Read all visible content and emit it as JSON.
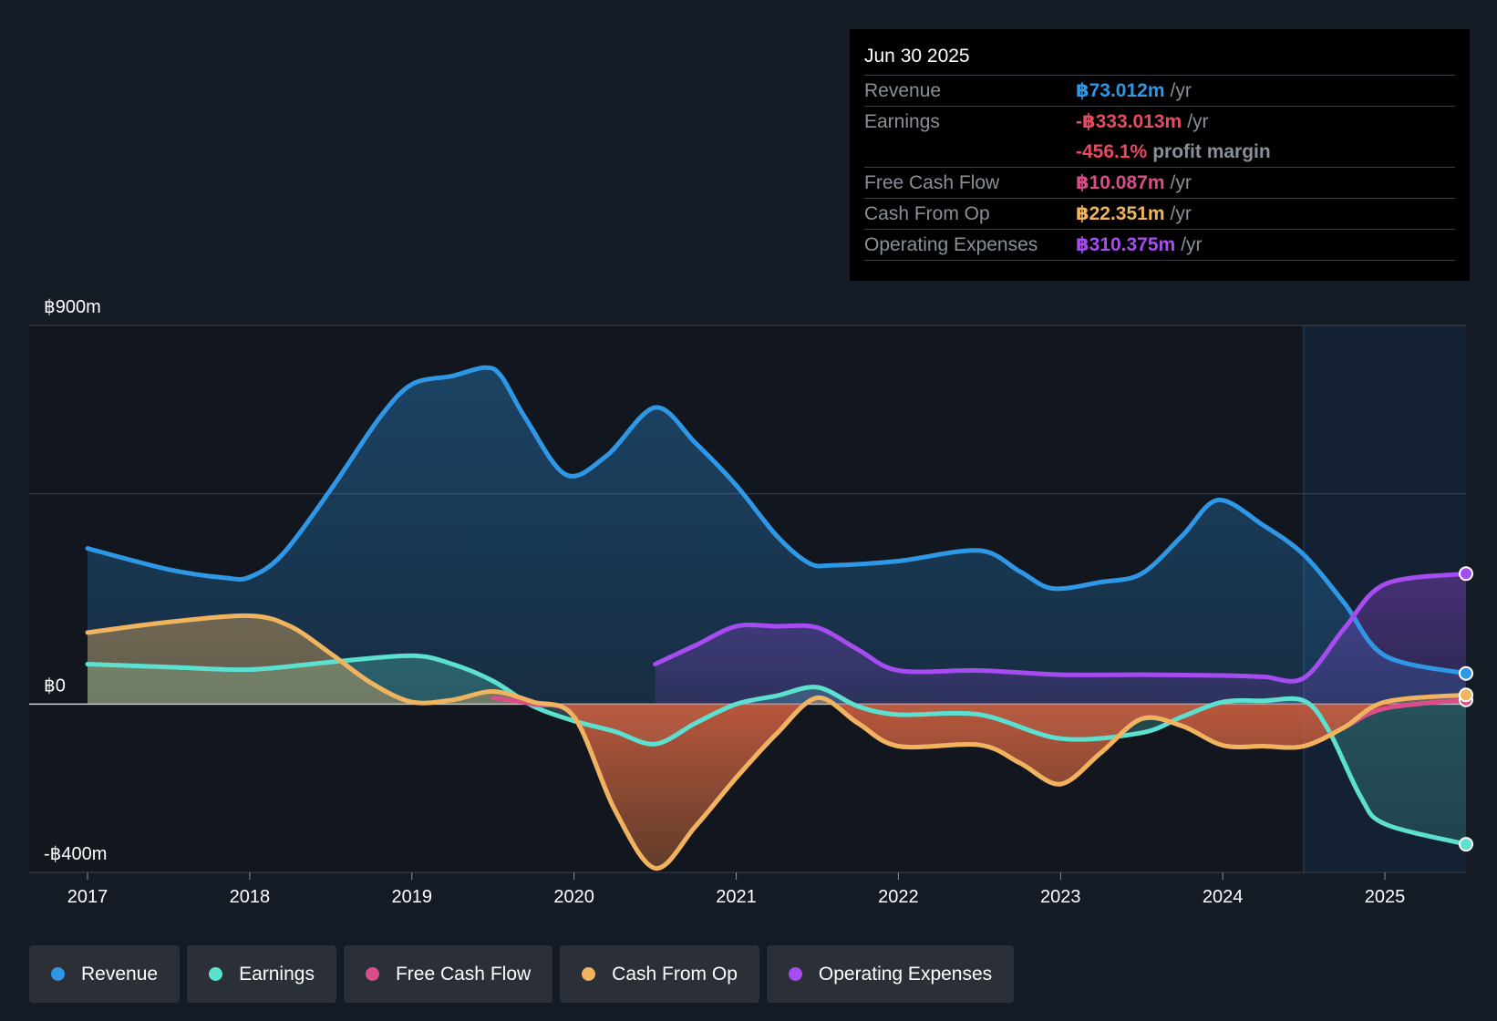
{
  "tooltip": {
    "date": "Jun 30 2025",
    "rows": [
      {
        "label": "Revenue",
        "value": "฿73.012m",
        "unit": "/yr",
        "color": "#2e97e6"
      },
      {
        "label": "Earnings",
        "value": "-฿333.013m",
        "unit": "/yr",
        "color": "#e84a5f"
      },
      {
        "label": "Free Cash Flow",
        "value": "฿10.087m",
        "unit": "/yr",
        "color": "#d94e88"
      },
      {
        "label": "Cash From Op",
        "value": "฿22.351m",
        "unit": "/yr",
        "color": "#f0b45e"
      },
      {
        "label": "Operating Expenses",
        "value": "฿310.375m",
        "unit": "/yr",
        "color": "#a64cf0"
      }
    ],
    "margin_value": "-456.1%",
    "margin_label": "profit margin"
  },
  "legend": [
    {
      "label": "Revenue",
      "color": "#2e97e6"
    },
    {
      "label": "Earnings",
      "color": "#5ce0cf"
    },
    {
      "label": "Free Cash Flow",
      "color": "#d94e88"
    },
    {
      "label": "Cash From Op",
      "color": "#f0b45e"
    },
    {
      "label": "Operating Expenses",
      "color": "#a64cf0"
    }
  ],
  "chart_data": {
    "type": "area",
    "title": "",
    "xlabel": "",
    "ylabel": "",
    "xlim": [
      2017,
      2025.5
    ],
    "ylim": [
      -400,
      900
    ],
    "y_tick_labels": [
      {
        "value": 900,
        "label": "฿900m"
      },
      {
        "value": 0,
        "label": "฿0"
      },
      {
        "value": -400,
        "label": "-฿400m"
      }
    ],
    "gridlines": [
      900,
      500,
      0,
      -400
    ],
    "x_ticks": [
      {
        "value": 2017,
        "label": "2017"
      },
      {
        "value": 2018,
        "label": "2018"
      },
      {
        "value": 2019,
        "label": "2019"
      },
      {
        "value": 2020,
        "label": "2020"
      },
      {
        "value": 2021,
        "label": "2021"
      },
      {
        "value": 2022,
        "label": "2022"
      },
      {
        "value": 2023,
        "label": "2023"
      },
      {
        "value": 2024,
        "label": "2024"
      },
      {
        "value": 2025,
        "label": "2025"
      }
    ],
    "highlight_start": 2024.5,
    "series": [
      {
        "name": "Revenue",
        "color": "#2e97e6",
        "x": [
          2017,
          2017.5,
          2017.85,
          2018,
          2018.2,
          2018.5,
          2018.8,
          2019,
          2019.25,
          2019.45,
          2019.55,
          2019.7,
          2019.95,
          2020.2,
          2020.5,
          2020.75,
          2021,
          2021.25,
          2021.45,
          2021.6,
          2022,
          2022.5,
          2022.75,
          2022.95,
          2023.25,
          2023.5,
          2023.75,
          2023.97,
          2024.25,
          2024.5,
          2024.75,
          2025,
          2025.5
        ],
        "values": [
          370,
          320,
          300,
          302,
          355,
          510,
          680,
          760,
          780,
          800,
          780,
          680,
          545,
          590,
          705,
          620,
          520,
          400,
          335,
          330,
          340,
          365,
          315,
          275,
          290,
          310,
          400,
          485,
          425,
          355,
          240,
          115,
          73
        ]
      },
      {
        "name": "Earnings",
        "color": "#5ce0cf",
        "x": [
          2017,
          2017.5,
          2018,
          2018.5,
          2019,
          2019.25,
          2019.5,
          2019.75,
          2020,
          2020.25,
          2020.5,
          2020.75,
          2021,
          2021.25,
          2021.5,
          2021.75,
          2022,
          2022.5,
          2023,
          2023.5,
          2023.75,
          2024,
          2024.25,
          2024.5,
          2024.65,
          2024.85,
          2025,
          2025.5
        ],
        "values": [
          95,
          88,
          82,
          100,
          115,
          95,
          55,
          -5,
          -40,
          -65,
          -95,
          -45,
          0,
          20,
          40,
          -5,
          -25,
          -25,
          -82,
          -68,
          -30,
          5,
          8,
          8,
          -60,
          -220,
          -285,
          -333
        ]
      },
      {
        "name": "Free Cash Flow",
        "color": "#d94e88",
        "x": [
          2019.5,
          2019.75,
          2020,
          2020.25,
          2020.5,
          2020.75,
          2021,
          2021.25,
          2021.5,
          2021.75,
          2022,
          2022.5,
          2022.75,
          2023,
          2023.25,
          2023.5,
          2023.75,
          2024,
          2024.25,
          2024.5,
          2024.75,
          2025,
          2025.5
        ],
        "values": [
          15,
          0,
          -30,
          -250,
          -390,
          -290,
          -175,
          -70,
          15,
          -45,
          -100,
          -97,
          -140,
          -190,
          -115,
          -35,
          -52,
          -98,
          -100,
          -100,
          -55,
          -10,
          10
        ]
      },
      {
        "name": "Cash From Op",
        "color": "#f0b45e",
        "x": [
          2017,
          2017.5,
          2018,
          2018.25,
          2018.5,
          2018.75,
          2019,
          2019.25,
          2019.5,
          2019.75,
          2020,
          2020.25,
          2020.5,
          2020.75,
          2021,
          2021.25,
          2021.5,
          2021.75,
          2022,
          2022.5,
          2022.75,
          2023,
          2023.25,
          2023.5,
          2023.75,
          2024,
          2024.25,
          2024.5,
          2024.75,
          2025,
          2025.5
        ],
        "values": [
          170,
          195,
          210,
          185,
          120,
          50,
          5,
          10,
          30,
          5,
          -30,
          -250,
          -390,
          -290,
          -175,
          -70,
          15,
          -45,
          -100,
          -97,
          -140,
          -190,
          -115,
          -35,
          -52,
          -98,
          -100,
          -100,
          -55,
          5,
          22
        ]
      },
      {
        "name": "Operating Expenses",
        "color": "#a64cf0",
        "x": [
          2020.5,
          2020.75,
          2021,
          2021.25,
          2021.5,
          2021.75,
          2022,
          2022.5,
          2023,
          2023.5,
          2024,
          2024.25,
          2024.5,
          2024.75,
          2025,
          2025.5
        ],
        "values": [
          95,
          140,
          185,
          185,
          182,
          130,
          80,
          80,
          70,
          70,
          68,
          65,
          62,
          180,
          285,
          310
        ]
      }
    ]
  }
}
